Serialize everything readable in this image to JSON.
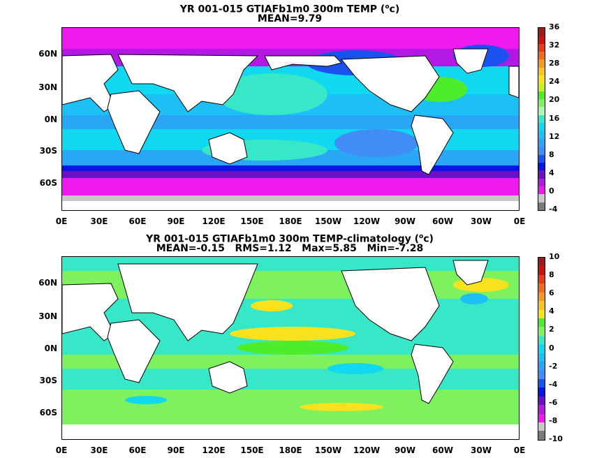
{
  "panels": [
    {
      "title_line1_pre": "YR 001-015 GTIAFb1m0 300m TEMP (",
      "title_sup": "o",
      "title_line1_post": "c)",
      "title_line2": "MEAN=9.79",
      "colorbar_labels": [
        "36",
        "32",
        "28",
        "24",
        "20",
        "16",
        "12",
        "8",
        "4",
        "0",
        "-4"
      ],
      "colorbar_colors": [
        "#9b1c1c",
        "#cc1111",
        "#e83a1a",
        "#ee6b1f",
        "#f29a21",
        "#f6c622",
        "#f8e21e",
        "#c8f01e",
        "#4ded2c",
        "#7ef25e",
        "#b0f6b0",
        "#37e8c8",
        "#10d8f0",
        "#1cc0f5",
        "#2aa6f6",
        "#3f8df5",
        "#1a52f0",
        "#0a14e6",
        "#6a10c8",
        "#b418e4",
        "#ee1aee",
        "#c8c8c8",
        "#7a7a7a"
      ]
    },
    {
      "title_line1_pre": "YR 001-015 GTIAFb1m0 300m TEMP-climatology (",
      "title_sup": "o",
      "title_line1_post": "c)",
      "title_line2": "MEAN=-0.15   RMS=1.12   Max=5.85   Min=-7.28",
      "colorbar_labels": [
        "10",
        "8",
        "6",
        "4",
        "2",
        "0",
        "-2",
        "-4",
        "-6",
        "-8",
        "-10"
      ],
      "colorbar_colors": [
        "#9b1c1c",
        "#cc1111",
        "#e83a1a",
        "#ee6b1f",
        "#f29a21",
        "#f6c622",
        "#f8e21e",
        "#4ded2c",
        "#7ef25e",
        "#37e8c8",
        "#10d8f0",
        "#1cc0f5",
        "#2aa6f6",
        "#3f8df5",
        "#1a52f0",
        "#0a14e6",
        "#6a10c8",
        "#b418e4",
        "#ee1aee",
        "#c8c8c8",
        "#7a7a7a"
      ]
    }
  ],
  "y_ticks": [
    "60N",
    "30N",
    "0N",
    "30S",
    "60S"
  ],
  "x_ticks": [
    "0E",
    "30E",
    "60E",
    "90E",
    "120E",
    "150E",
    "180E",
    "150W",
    "120W",
    "90W",
    "60W",
    "30W",
    "0E"
  ]
}
